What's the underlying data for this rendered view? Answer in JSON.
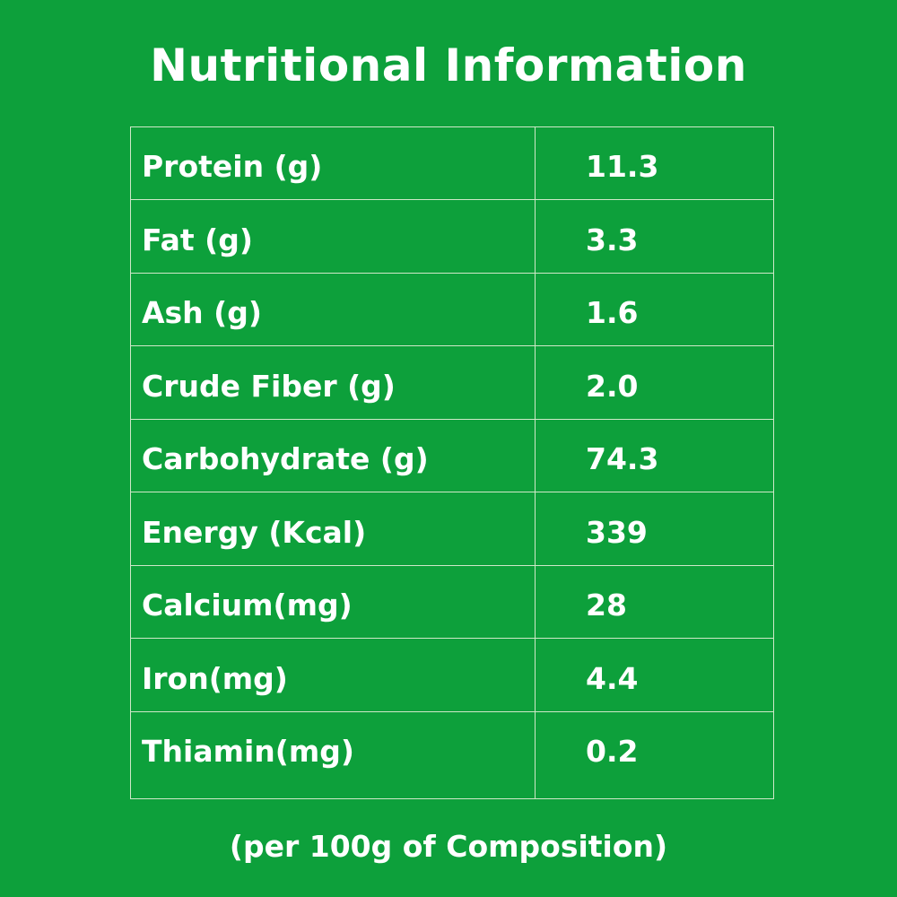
{
  "header": {
    "title": "Nutritional Information"
  },
  "table": {
    "rows": [
      [
        "Protein (g)",
        "11.3"
      ],
      [
        "Fat (g)",
        "3.3"
      ],
      [
        "Ash (g)",
        "1.6"
      ],
      [
        "Crude Fiber (g)",
        "2.0"
      ],
      [
        "Carbohydrate (g)",
        "74.3"
      ],
      [
        "Energy (Kcal)",
        "339"
      ],
      [
        "Calcium(mg)",
        "28"
      ],
      [
        "Iron(mg)",
        "4.4"
      ],
      [
        "Thiamin(mg)",
        "0.2"
      ]
    ]
  },
  "footer": {
    "note": "(per 100g of Composition)"
  }
}
